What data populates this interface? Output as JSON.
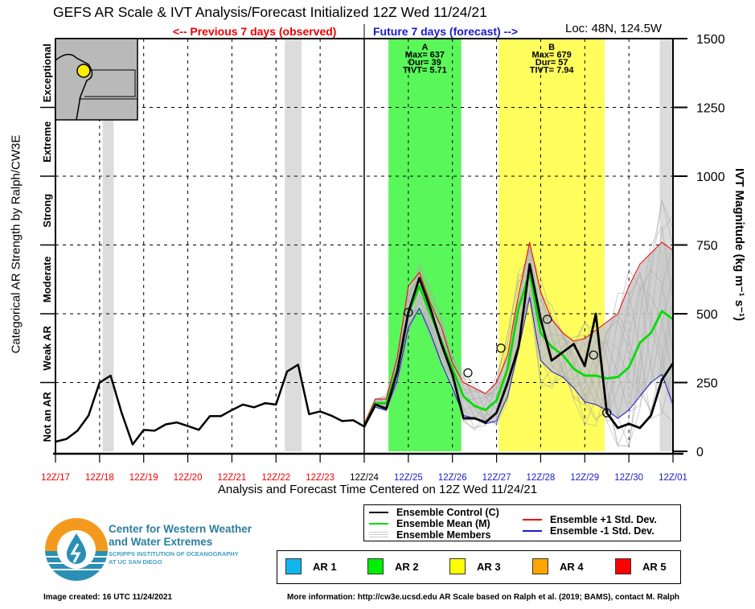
{
  "header": {
    "title": "GEFS AR Scale & IVT Analysis/Forecast Initialized 12Z Wed 11/24/21",
    "previous_label": "<-- Previous 7 days (observed)",
    "future_label": "Future 7 days (forecast) -->",
    "location": "Loc: 48N, 124.5W"
  },
  "axes": {
    "left_title": "Categorical AR Strength by Ralph/CW3E",
    "right_title": "IVT Magnitude (kg m⁻¹ s⁻¹)",
    "x_title": "Analysis and Forecast Time Centered on 12Z Wed 11/24/21"
  },
  "chart_data": {
    "type": "line",
    "title": "GEFS AR Scale & IVT Analysis/Forecast Initialized 12Z Wed 11/24/21",
    "xlabel": "Analysis and Forecast Time Centered on 12Z Wed 11/24/21",
    "ylabel": "IVT Magnitude (kg m-1 s-1)",
    "ylim": [
      0,
      1500
    ],
    "xlim_days": [
      0,
      14
    ],
    "grid": true,
    "y_ticks": [
      0,
      250,
      500,
      750,
      1000,
      1250,
      1500
    ],
    "x_ticks": [
      {
        "label": "12Z/17",
        "day": 0,
        "period": "observed"
      },
      {
        "label": "12Z/18",
        "day": 1,
        "period": "observed"
      },
      {
        "label": "12Z/19",
        "day": 2,
        "period": "observed"
      },
      {
        "label": "12Z/20",
        "day": 3,
        "period": "observed"
      },
      {
        "label": "12Z/21",
        "day": 4,
        "period": "observed"
      },
      {
        "label": "12Z/22",
        "day": 5,
        "period": "observed"
      },
      {
        "label": "12Z/23",
        "day": 6,
        "period": "observed"
      },
      {
        "label": "12Z/24",
        "day": 7,
        "period": "init"
      },
      {
        "label": "12Z/25",
        "day": 8,
        "period": "forecast"
      },
      {
        "label": "12Z/26",
        "day": 9,
        "period": "forecast"
      },
      {
        "label": "12Z/27",
        "day": 10,
        "period": "forecast"
      },
      {
        "label": "12Z/28",
        "day": 11,
        "period": "forecast"
      },
      {
        "label": "12Z/29",
        "day": 12,
        "period": "forecast"
      },
      {
        "label": "12Z/30",
        "day": 13,
        "period": "forecast"
      },
      {
        "label": "12Z/01",
        "day": 14,
        "period": "forecast"
      }
    ],
    "tick_colors": {
      "observed": "#ee0000",
      "init": "#000000",
      "forecast": "#1a1acc"
    },
    "categories_left": [
      {
        "label": "Not an AR",
        "range": [
          0,
          250
        ]
      },
      {
        "label": "Weak AR",
        "range": [
          250,
          500
        ]
      },
      {
        "label": "Moderate",
        "range": [
          500,
          750
        ]
      },
      {
        "label": "Strong",
        "range": [
          750,
          1000
        ]
      },
      {
        "label": "Extreme",
        "range": [
          1000,
          1250
        ]
      },
      {
        "label": "Exceptional",
        "range": [
          1250,
          1500
        ]
      }
    ],
    "ar_events": [
      {
        "label": "A",
        "max": "Max= 637",
        "dur": "Dur= 39",
        "tivt": "TIVT= 5.71",
        "start_day": 7.55,
        "end_day": 9.2,
        "category": "AR 2",
        "color": "#5af75a"
      },
      {
        "label": "B",
        "max": "Max= 679",
        "dur": "Dur= 57",
        "tivt": "TIVT= 7.94",
        "start_day": 10.05,
        "end_day": 12.45,
        "category": "AR 3",
        "color": "#fffe5c"
      }
    ],
    "gray_bands_days": [
      [
        1.07,
        1.32
      ],
      [
        5.2,
        5.58
      ],
      [
        13.7,
        14.0
      ]
    ],
    "observed": {
      "name": "Analysis",
      "x_days": [
        0,
        0.25,
        0.5,
        0.75,
        1.0,
        1.25,
        1.5,
        1.75,
        2.0,
        2.25,
        2.5,
        2.75,
        3.0,
        3.25,
        3.5,
        3.75,
        4.0,
        4.25,
        4.5,
        4.75,
        5.0,
        5.25,
        5.5,
        5.75,
        6.0,
        6.25,
        6.5,
        6.75,
        7.0
      ],
      "values": [
        35,
        45,
        75,
        130,
        250,
        275,
        140,
        25,
        78,
        75,
        98,
        105,
        92,
        78,
        128,
        128,
        150,
        170,
        160,
        175,
        170,
        290,
        315,
        135,
        145,
        130,
        110,
        113,
        90
      ]
    },
    "forecast_x_days": [
      7.0,
      7.25,
      7.5,
      7.75,
      8.0,
      8.25,
      8.5,
      8.75,
      9.0,
      9.25,
      9.5,
      9.75,
      10.0,
      10.25,
      10.5,
      10.75,
      11.0,
      11.25,
      11.5,
      11.75,
      12.0,
      12.25,
      12.5,
      12.75,
      13.0,
      13.25,
      13.5,
      13.75,
      14.0
    ],
    "series": [
      {
        "name": "Ensemble Control (C)",
        "color": "#000000",
        "values": [
          90,
          170,
          155,
          290,
          505,
          630,
          520,
          390,
          280,
          120,
          120,
          105,
          140,
          250,
          380,
          680,
          480,
          330,
          360,
          390,
          310,
          500,
          140,
          85,
          100,
          85,
          130,
          260,
          320
        ]
      },
      {
        "name": "Ensemble Mean (M)",
        "color": "#00dd00",
        "values": [
          90,
          175,
          175,
          300,
          500,
          600,
          500,
          400,
          300,
          200,
          165,
          150,
          185,
          300,
          520,
          650,
          430,
          380,
          350,
          300,
          275,
          275,
          265,
          270,
          305,
          395,
          430,
          510,
          480
        ]
      },
      {
        "name": "Ensemble +1 Std. Dev.",
        "color": "#ee0000",
        "values": [
          100,
          190,
          190,
          340,
          600,
          650,
          540,
          450,
          320,
          250,
          230,
          210,
          250,
          350,
          570,
          760,
          580,
          480,
          430,
          400,
          410,
          440,
          470,
          500,
          600,
          680,
          720,
          760,
          730
        ]
      },
      {
        "name": "Ensemble -1 Std. Dev.",
        "color": "#1a1acc",
        "values": [
          85,
          160,
          150,
          260,
          450,
          520,
          430,
          320,
          230,
          130,
          120,
          100,
          110,
          200,
          370,
          560,
          330,
          290,
          270,
          230,
          180,
          170,
          150,
          120,
          150,
          200,
          250,
          280,
          170
        ]
      },
      {
        "name": "Ensemble Members",
        "color": "#b8b8b8",
        "values": []
      }
    ],
    "legend_position": "bottom",
    "ar_scale_legend": [
      {
        "label": "AR 1",
        "color": "#12b4f0"
      },
      {
        "label": "AR 2",
        "color": "#00ee00"
      },
      {
        "label": "AR 3",
        "color": "#ffff00"
      },
      {
        "label": "AR 4",
        "color": "#ffa500"
      },
      {
        "label": "AR 5",
        "color": "#ff0000"
      }
    ]
  },
  "legend": {
    "control": "Ensemble Control (C)",
    "mean": "Ensemble Mean (M)",
    "members": "Ensemble Members",
    "plus_std": "Ensemble +1 Std. Dev.",
    "minus_std": "Ensemble -1 Std. Dev."
  },
  "logo": {
    "line1": "Center for Western Weather",
    "line2": "and Water Extremes",
    "line3": "SCRIPPS INSTITUTION OF OCEANOGRAPHY",
    "line4": "AT UC SAN DIEGO"
  },
  "footer": {
    "created": "Image created: 16 UTC 11/24/2021",
    "more_info": "More information: http://cw3e.ucsd.edu  AR Scale based on Ralph et al. (2019; BAMS), contact M. Ralph"
  }
}
